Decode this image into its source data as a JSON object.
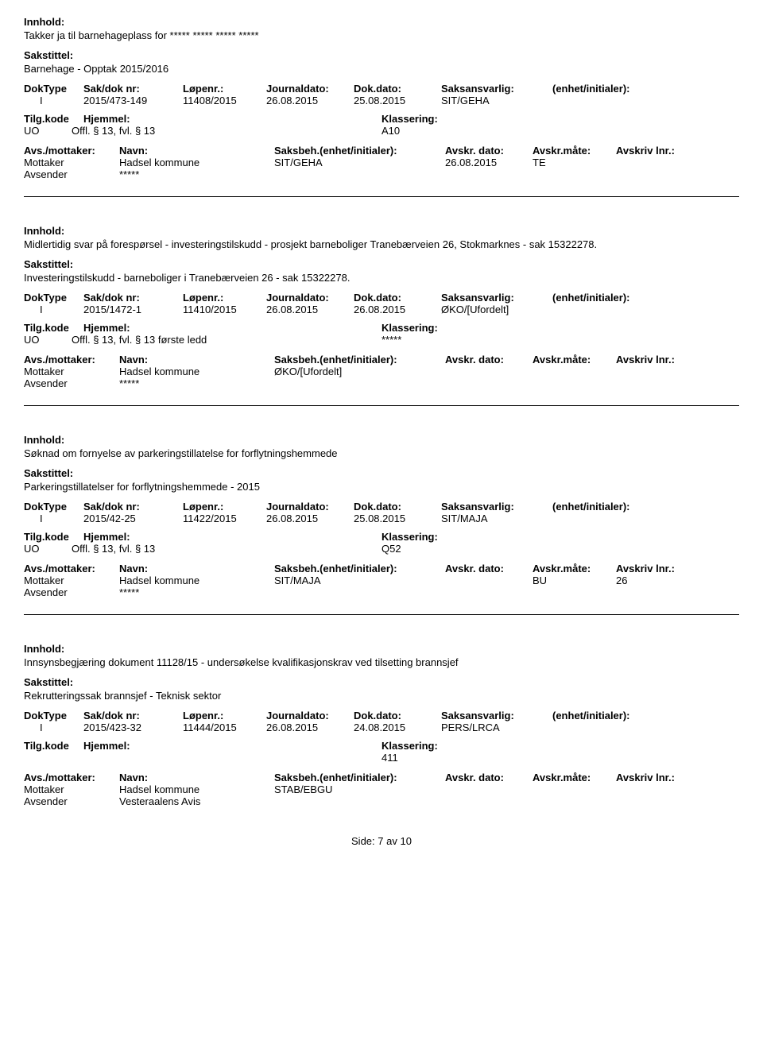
{
  "labels": {
    "innhold": "Innhold:",
    "sakstittel": "Sakstittel:",
    "doktype": "DokType",
    "sakdok": "Sak/dok nr:",
    "lopenr": "Løpenr.:",
    "journaldato": "Journaldato:",
    "dokdato": "Dok.dato:",
    "saksansvarlig": "Saksansvarlig:",
    "enhet": "(enhet/initialer):",
    "tilgkode": "Tilg.kode",
    "hjemmel": "Hjemmel:",
    "klassering": "Klassering:",
    "avsmot": "Avs./mottaker:",
    "navn": "Navn:",
    "saksbeh": "Saksbeh.(enhet/initialer):",
    "avskrdato": "Avskr. dato:",
    "avskrmate": "Avskr.måte:",
    "avskrivlnr": "Avskriv lnr.:",
    "mottaker": "Mottaker",
    "avsender": "Avsender"
  },
  "entries": [
    {
      "innhold": "Takker ja til barnehageplass for ***** ***** ***** *****",
      "sakstittel": "Barnehage - Opptak 2015/2016",
      "doktype": "I",
      "sakdok": "2015/473-149",
      "lopenr": "11408/2015",
      "journaldato": "26.08.2015",
      "dokdato": "25.08.2015",
      "saksansvarlig": "SIT/GEHA",
      "enhet": "",
      "tilgkode": "UO",
      "hjemmel": "Offl. § 13, fvl. § 13",
      "klassering": "A10",
      "mottaker_navn": "Hadsel kommune",
      "avsender_navn": "*****",
      "saksbeh": "SIT/GEHA",
      "avskrdato": "26.08.2015",
      "avskrmate": "TE",
      "avskrivlnr": ""
    },
    {
      "innhold": "Midlertidig svar på forespørsel - investeringstilskudd - prosjekt barneboliger Tranebærveien 26, Stokmarknes - sak 15322278.",
      "sakstittel": "Investeringstilskudd - barneboliger i Tranebærveien 26 - sak 15322278.",
      "doktype": "I",
      "sakdok": "2015/1472-1",
      "lopenr": "11410/2015",
      "journaldato": "26.08.2015",
      "dokdato": "26.08.2015",
      "saksansvarlig": "ØKO/[Ufordelt]",
      "enhet": "",
      "tilgkode": "UO",
      "hjemmel": "Offl. § 13, fvl. § 13 første ledd",
      "klassering": "*****",
      "mottaker_navn": "Hadsel kommune",
      "avsender_navn": "*****",
      "saksbeh": "ØKO/[Ufordelt]",
      "avskrdato": "",
      "avskrmate": "",
      "avskrivlnr": ""
    },
    {
      "innhold": "Søknad om fornyelse av parkeringstillatelse for forflytningshemmede",
      "sakstittel": "Parkeringstillatelser for forflytningshemmede - 2015",
      "doktype": "I",
      "sakdok": "2015/42-25",
      "lopenr": "11422/2015",
      "journaldato": "26.08.2015",
      "dokdato": "25.08.2015",
      "saksansvarlig": "SIT/MAJA",
      "enhet": "",
      "tilgkode": "UO",
      "hjemmel": "Offl. § 13, fvl. § 13",
      "klassering": "Q52",
      "mottaker_navn": "Hadsel kommune",
      "avsender_navn": "*****",
      "saksbeh": "SIT/MAJA",
      "avskrdato": "",
      "avskrmate": "BU",
      "avskrivlnr": "26"
    },
    {
      "innhold": "Innsynsbegjæring dokument 11128/15 - undersøkelse kvalifikasjonskrav ved tilsetting brannsjef",
      "sakstittel": "Rekrutteringssak brannsjef - Teknisk sektor",
      "doktype": "I",
      "sakdok": "2015/423-32",
      "lopenr": "11444/2015",
      "journaldato": "26.08.2015",
      "dokdato": "24.08.2015",
      "saksansvarlig": "PERS/LRCA",
      "enhet": "",
      "tilgkode": "",
      "hjemmel": "",
      "klassering": "411",
      "mottaker_navn": "Hadsel kommune",
      "avsender_navn": "Vesteraalens Avis",
      "saksbeh": "STAB/EBGU",
      "avskrdato": "",
      "avskrmate": "",
      "avskrivlnr": ""
    }
  ],
  "footer": {
    "side_label": "Side:",
    "page": "7",
    "av": "av",
    "total": "10"
  }
}
